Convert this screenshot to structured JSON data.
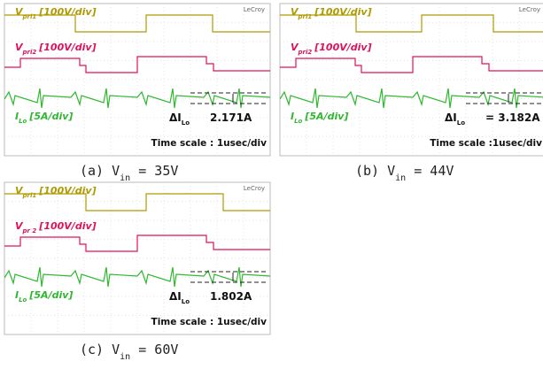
{
  "panels": [
    {
      "brand": "LeCroy",
      "traces": [
        {
          "symbol": "V",
          "sub": "pri1",
          "scale": "[100V/div]"
        },
        {
          "symbol": "V",
          "sub": "pri2",
          "scale": "[100V/div]"
        },
        {
          "symbol": "I",
          "sub": "Lo",
          "scale": "[5A/div]"
        }
      ],
      "delta": {
        "symbol": "ΔI",
        "sub": "Lo",
        "value": "2.171A"
      },
      "timescale": "Time scale : 1usec/div",
      "caption": {
        "prefix": "(a) V",
        "sub": "in",
        "suffix": " = 35V"
      }
    },
    {
      "brand": "LeCroy",
      "traces": [
        {
          "symbol": "V",
          "sub": "pri1",
          "scale": "[100V/div]"
        },
        {
          "symbol": "V",
          "sub": "pri2",
          "scale": "[100V/div]"
        },
        {
          "symbol": "I",
          "sub": "Lo",
          "scale": "[5A/div]"
        }
      ],
      "delta": {
        "symbol": "ΔI",
        "sub": "Lo",
        "value": "= 3.182A"
      },
      "timescale": "Time scale :1usec/div",
      "caption": {
        "prefix": "(b) V",
        "sub": "in",
        "suffix": " = 44V"
      }
    },
    {
      "brand": "LeCroy",
      "traces": [
        {
          "symbol": "V",
          "sub": "pri1",
          "scale": "[100V/div]"
        },
        {
          "symbol": "V",
          "sub": "pr 2",
          "scale": "[100V/div]"
        },
        {
          "symbol": "I",
          "sub": "Lo",
          "scale": "[5A/div]"
        }
      ],
      "delta": {
        "symbol": "ΔI",
        "sub": "Lo",
        "value": "1.802A"
      },
      "timescale": "Time scale : 1usec/div",
      "caption": {
        "prefix": "(c) V",
        "sub": "in",
        "suffix": " = 60V"
      }
    }
  ]
}
